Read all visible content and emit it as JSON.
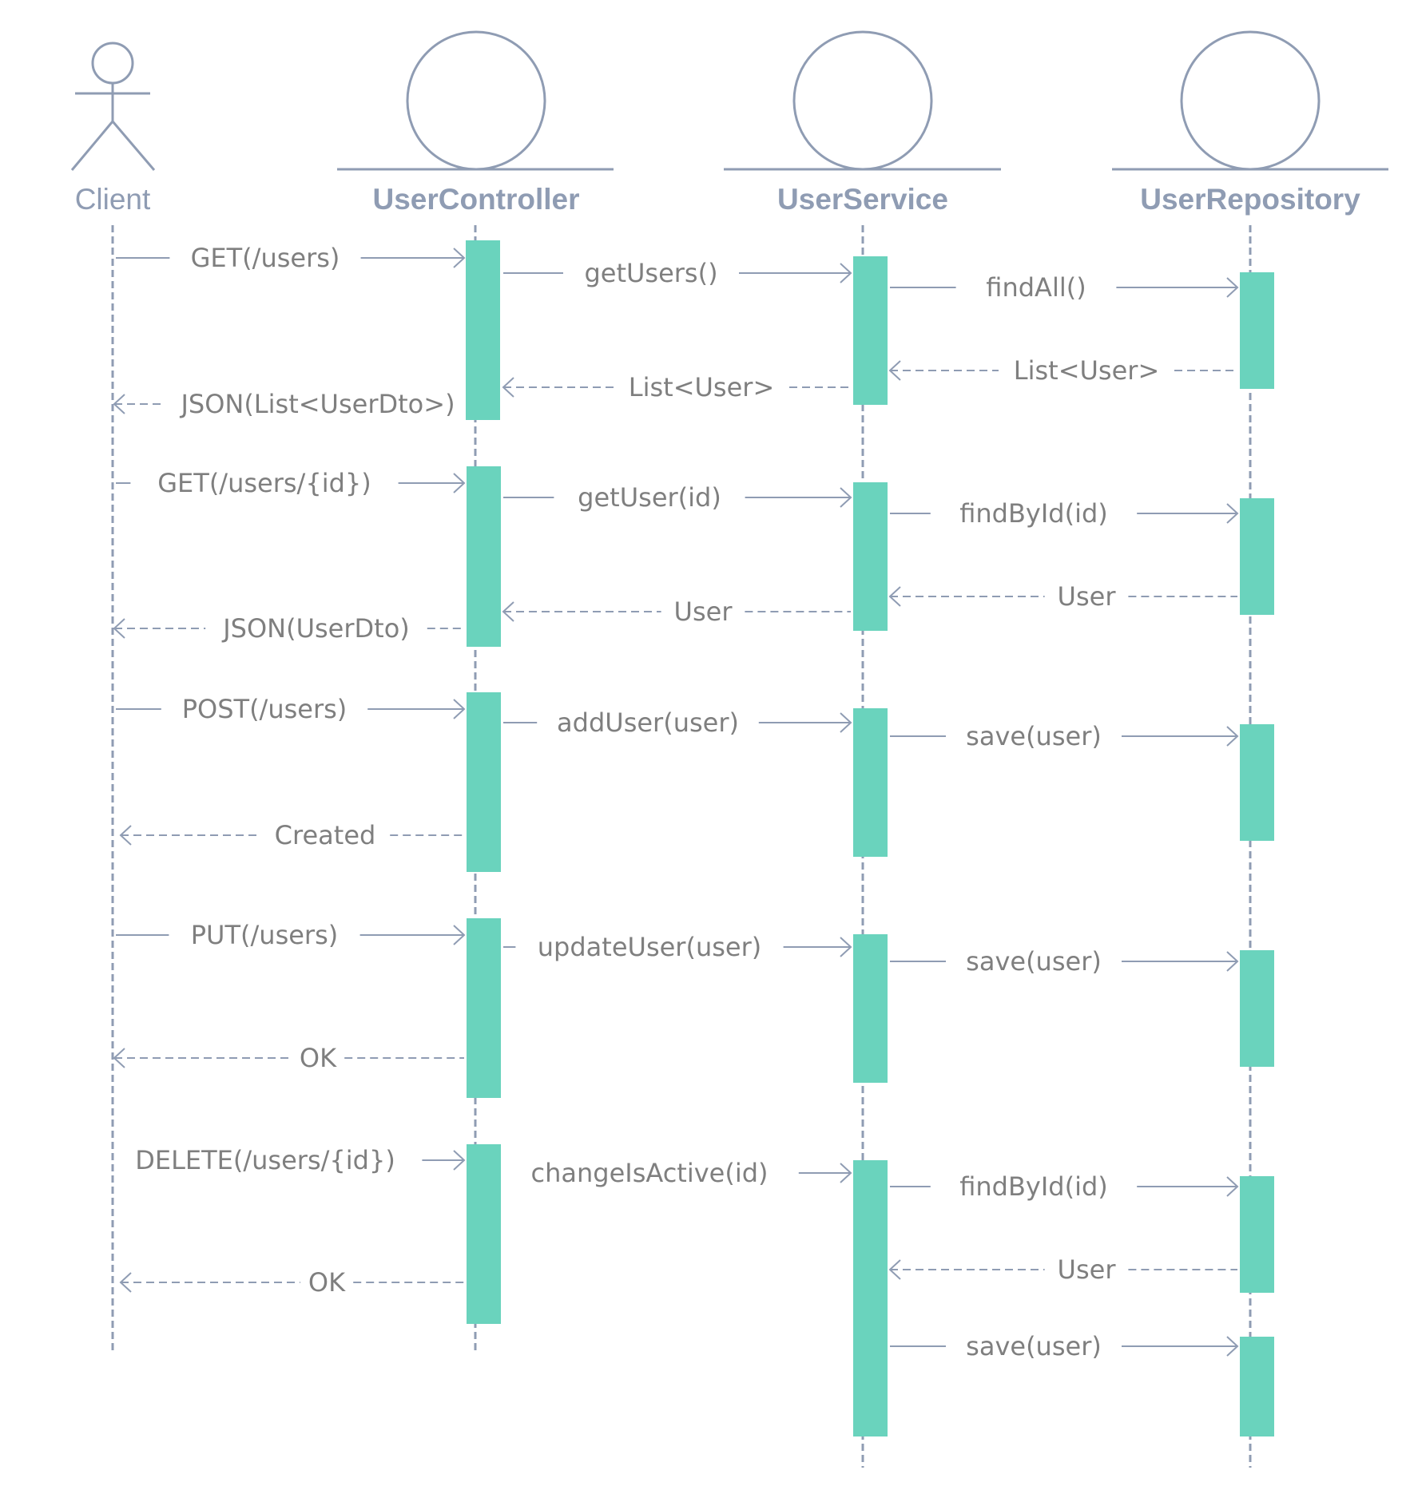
{
  "participants": [
    {
      "id": "client",
      "label": "Client",
      "kind": "actor"
    },
    {
      "id": "controller",
      "label": "UserController",
      "kind": "boundary"
    },
    {
      "id": "service",
      "label": "UserService",
      "kind": "boundary"
    },
    {
      "id": "repository",
      "label": "UserRepository",
      "kind": "boundary"
    }
  ],
  "messages": [
    {
      "from": "client",
      "to": "controller",
      "label": "GET(/users)",
      "type": "call"
    },
    {
      "from": "controller",
      "to": "service",
      "label": "getUsers()",
      "type": "call"
    },
    {
      "from": "service",
      "to": "repository",
      "label": "findAll()",
      "type": "call"
    },
    {
      "from": "repository",
      "to": "service",
      "label": "List<User>",
      "type": "return"
    },
    {
      "from": "service",
      "to": "controller",
      "label": "List<User>",
      "type": "return"
    },
    {
      "from": "controller",
      "to": "client",
      "label": "JSON(List<UserDto>)",
      "type": "return"
    },
    {
      "from": "client",
      "to": "controller",
      "label": "GET(/users/{id})",
      "type": "call"
    },
    {
      "from": "controller",
      "to": "service",
      "label": "getUser(id)",
      "type": "call"
    },
    {
      "from": "service",
      "to": "repository",
      "label": "findById(id)",
      "type": "call"
    },
    {
      "from": "repository",
      "to": "service",
      "label": "User",
      "type": "return"
    },
    {
      "from": "service",
      "to": "controller",
      "label": "User",
      "type": "return"
    },
    {
      "from": "controller",
      "to": "client",
      "label": "JSON(UserDto)",
      "type": "return"
    },
    {
      "from": "client",
      "to": "controller",
      "label": "POST(/users)",
      "type": "call"
    },
    {
      "from": "controller",
      "to": "service",
      "label": "addUser(user)",
      "type": "call"
    },
    {
      "from": "service",
      "to": "repository",
      "label": "save(user)",
      "type": "call"
    },
    {
      "from": "controller",
      "to": "client",
      "label": "Created",
      "type": "return"
    },
    {
      "from": "client",
      "to": "controller",
      "label": "PUT(/users)",
      "type": "call"
    },
    {
      "from": "controller",
      "to": "service",
      "label": "updateUser(user)",
      "type": "call"
    },
    {
      "from": "service",
      "to": "repository",
      "label": "save(user)",
      "type": "call"
    },
    {
      "from": "controller",
      "to": "client",
      "label": "OK",
      "type": "return"
    },
    {
      "from": "client",
      "to": "controller",
      "label": "DELETE(/users/{id})",
      "type": "call"
    },
    {
      "from": "controller",
      "to": "service",
      "label": "changeIsActive(id)",
      "type": "call"
    },
    {
      "from": "service",
      "to": "repository",
      "label": "findById(id)",
      "type": "call"
    },
    {
      "from": "repository",
      "to": "service",
      "label": "User",
      "type": "return"
    },
    {
      "from": "controller",
      "to": "client",
      "label": "OK",
      "type": "return"
    },
    {
      "from": "service",
      "to": "repository",
      "label": "save(user)",
      "type": "call"
    }
  ],
  "colors": {
    "line": "#8f9cb3",
    "activation": "#6ad3bd",
    "message_text": "#7f7f7f"
  }
}
